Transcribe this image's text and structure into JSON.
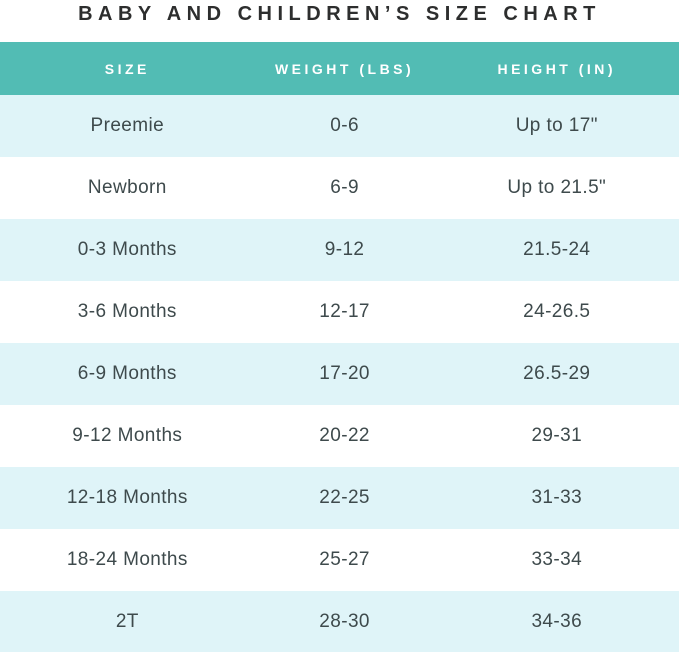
{
  "title": "BABY AND CHILDREN’S SIZE CHART",
  "colors": {
    "header_bg": "#52bcb4",
    "header_text": "#ffffff",
    "row_alt_bg": "#dff4f8",
    "row_bg": "#ffffff",
    "title_text": "#2d2e2e",
    "cell_text": "#3e4a4c"
  },
  "table": {
    "headers": [
      "SIZE",
      "WEIGHT (LBS)",
      "HEIGHT (IN)"
    ],
    "rows": [
      {
        "size": "Preemie",
        "weight_lbs": "0-6",
        "height_in": "Up to 17\""
      },
      {
        "size": "Newborn",
        "weight_lbs": "6-9",
        "height_in": "Up to 21.5\""
      },
      {
        "size": "0-3 Months",
        "weight_lbs": "9-12",
        "height_in": "21.5-24"
      },
      {
        "size": "3-6 Months",
        "weight_lbs": "12-17",
        "height_in": "24-26.5"
      },
      {
        "size": "6-9 Months",
        "weight_lbs": "17-20",
        "height_in": "26.5-29"
      },
      {
        "size": "9-12 Months",
        "weight_lbs": "20-22",
        "height_in": "29-31"
      },
      {
        "size": "12-18 Months",
        "weight_lbs": "22-25",
        "height_in": "31-33"
      },
      {
        "size": "18-24 Months",
        "weight_lbs": "25-27",
        "height_in": "33-34"
      },
      {
        "size": "2T",
        "weight_lbs": "28-30",
        "height_in": "34-36"
      }
    ]
  },
  "chart_data": {
    "type": "table",
    "title": "BABY AND CHILDREN’S SIZE CHART",
    "columns": [
      "SIZE",
      "WEIGHT (LBS)",
      "HEIGHT (IN)"
    ],
    "rows": [
      [
        "Preemie",
        "0-6",
        "Up to 17\""
      ],
      [
        "Newborn",
        "6-9",
        "Up to 21.5\""
      ],
      [
        "0-3 Months",
        "9-12",
        "21.5-24"
      ],
      [
        "3-6 Months",
        "12-17",
        "24-26.5"
      ],
      [
        "6-9 Months",
        "17-20",
        "26.5-29"
      ],
      [
        "9-12 Months",
        "20-22",
        "29-31"
      ],
      [
        "12-18 Months",
        "22-25",
        "31-33"
      ],
      [
        "18-24 Months",
        "25-27",
        "33-34"
      ],
      [
        "2T",
        "28-30",
        "34-36"
      ]
    ],
    "layout": "alternating row shading, teal header, all cells center-aligned"
  }
}
